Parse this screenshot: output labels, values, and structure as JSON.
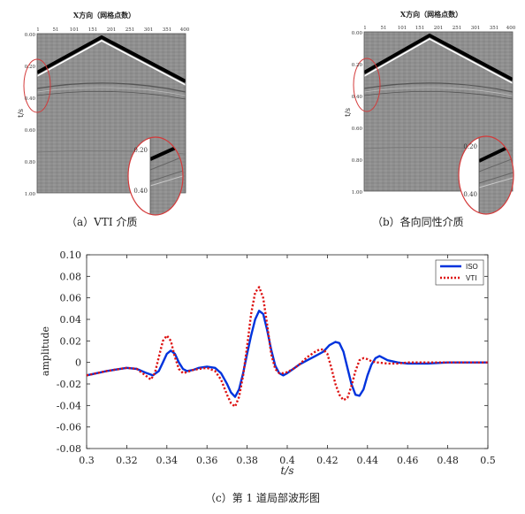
{
  "seismic_panels": [
    {
      "header": "X方向（网格点数）",
      "x_ticks": [
        "1",
        "51",
        "101",
        "151",
        "201",
        "251",
        "301",
        "351",
        "400"
      ],
      "y_ticks": [
        "0.00",
        "0.20",
        "0.40",
        "0.60",
        "0.80",
        "1.00"
      ],
      "y_label": "t/s",
      "inset_ticks": [
        "0.20",
        "0.40"
      ],
      "caption": "（a）VTI 介质"
    },
    {
      "header": "X方向（网格点数）",
      "x_ticks": [
        "1",
        "51",
        "101",
        "151",
        "201",
        "251",
        "301",
        "351",
        "400"
      ],
      "y_ticks": [
        "0.00",
        "0.20",
        "0.40",
        "0.60",
        "0.80",
        "1.00"
      ],
      "y_label": "t/s",
      "inset_ticks": [
        "0.20",
        "0.40"
      ],
      "caption": "（b）各向同性介质"
    }
  ],
  "chart_data": {
    "type": "line",
    "title": "",
    "xlabel": "t/s",
    "ylabel": "amplitude",
    "xlim": [
      0.3,
      0.5
    ],
    "ylim": [
      -0.08,
      0.1
    ],
    "x_ticks": [
      "0.3",
      "0.32",
      "0.34",
      "0.36",
      "0.38",
      "0.4",
      "0.42",
      "0.44",
      "0.46",
      "0.48",
      "0.5"
    ],
    "y_ticks": [
      "0.10",
      "0.08",
      "0.06",
      "0.04",
      "0.02",
      "0",
      "-0.02",
      "-0.04",
      "-0.06",
      "-0.08"
    ],
    "legend_position": "top-right",
    "series": [
      {
        "name": "ISO",
        "color": "#0033dd",
        "style": "solid",
        "x": [
          0.3,
          0.31,
          0.32,
          0.325,
          0.33,
          0.333,
          0.336,
          0.338,
          0.34,
          0.342,
          0.344,
          0.346,
          0.348,
          0.35,
          0.353,
          0.356,
          0.36,
          0.364,
          0.367,
          0.37,
          0.372,
          0.374,
          0.376,
          0.378,
          0.38,
          0.382,
          0.384,
          0.386,
          0.388,
          0.39,
          0.392,
          0.394,
          0.396,
          0.398,
          0.4,
          0.403,
          0.406,
          0.41,
          0.414,
          0.418,
          0.421,
          0.424,
          0.426,
          0.428,
          0.43,
          0.432,
          0.434,
          0.436,
          0.438,
          0.44,
          0.442,
          0.444,
          0.446,
          0.448,
          0.45,
          0.455,
          0.46,
          0.47,
          0.48,
          0.49,
          0.5
        ],
        "values": [
          -0.012,
          -0.008,
          -0.005,
          -0.006,
          -0.01,
          -0.012,
          -0.008,
          0.0,
          0.008,
          0.011,
          0.008,
          0.0,
          -0.006,
          -0.008,
          -0.007,
          -0.005,
          -0.004,
          -0.005,
          -0.01,
          -0.02,
          -0.028,
          -0.032,
          -0.025,
          -0.01,
          0.008,
          0.025,
          0.04,
          0.048,
          0.045,
          0.03,
          0.012,
          -0.003,
          -0.01,
          -0.012,
          -0.01,
          -0.006,
          -0.002,
          0.002,
          0.006,
          0.01,
          0.016,
          0.019,
          0.018,
          0.01,
          -0.005,
          -0.02,
          -0.03,
          -0.031,
          -0.025,
          -0.012,
          -0.002,
          0.004,
          0.006,
          0.004,
          0.002,
          0.0,
          -0.001,
          -0.001,
          0.0,
          0.0,
          0.0
        ]
      },
      {
        "name": "VTI",
        "color": "#dd1111",
        "style": "dotted",
        "x": [
          0.3,
          0.31,
          0.32,
          0.325,
          0.33,
          0.332,
          0.334,
          0.336,
          0.338,
          0.34,
          0.342,
          0.344,
          0.346,
          0.348,
          0.35,
          0.353,
          0.356,
          0.36,
          0.364,
          0.367,
          0.37,
          0.372,
          0.374,
          0.376,
          0.378,
          0.38,
          0.382,
          0.384,
          0.386,
          0.388,
          0.39,
          0.392,
          0.394,
          0.396,
          0.398,
          0.4,
          0.403,
          0.406,
          0.41,
          0.414,
          0.416,
          0.418,
          0.42,
          0.422,
          0.424,
          0.426,
          0.428,
          0.43,
          0.432,
          0.434,
          0.436,
          0.438,
          0.44,
          0.442,
          0.445,
          0.45,
          0.455,
          0.46,
          0.47,
          0.48,
          0.49,
          0.5
        ],
        "values": [
          -0.012,
          -0.008,
          -0.005,
          -0.006,
          -0.013,
          -0.016,
          -0.01,
          0.005,
          0.02,
          0.025,
          0.02,
          0.005,
          -0.006,
          -0.01,
          -0.009,
          -0.007,
          -0.006,
          -0.005,
          -0.008,
          -0.016,
          -0.03,
          -0.038,
          -0.041,
          -0.032,
          -0.012,
          0.015,
          0.045,
          0.065,
          0.07,
          0.06,
          0.035,
          0.008,
          -0.006,
          -0.01,
          -0.01,
          -0.009,
          -0.006,
          -0.002,
          0.005,
          0.01,
          0.012,
          0.012,
          0.008,
          -0.005,
          -0.02,
          -0.03,
          -0.035,
          -0.033,
          -0.022,
          -0.008,
          0.002,
          0.004,
          0.003,
          0.001,
          0.0,
          -0.001,
          -0.001,
          0.0,
          0.0,
          0.0,
          0.0,
          0.0
        ]
      }
    ],
    "caption": "（c）第 1 道局部波形图"
  }
}
